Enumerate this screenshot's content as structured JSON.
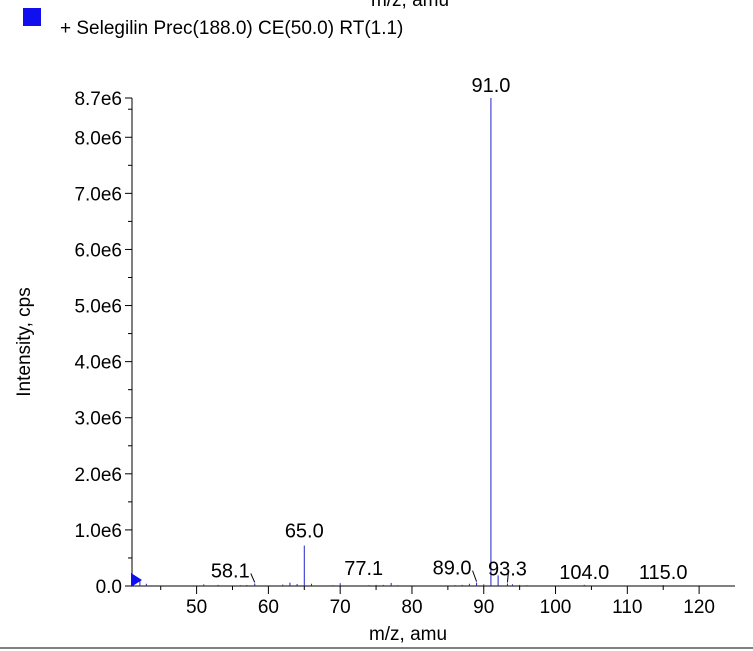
{
  "top_cutoff_text": "m/z, amu",
  "colors": {
    "series": "#2222cc",
    "legend_swatch": "#1010ee",
    "axis": "#000000",
    "marker": "#1010ee"
  },
  "chart_data": {
    "type": "bar",
    "title": "",
    "xlabel": "m/z, amu",
    "ylabel": "Intensity, cps",
    "xlim": [
      41,
      125
    ],
    "ylim": [
      0,
      8700000.0
    ],
    "x_ticks": [
      50,
      60,
      70,
      80,
      90,
      100,
      110,
      120
    ],
    "x_tick_labels": [
      "50",
      "60",
      "70",
      "80",
      "90",
      "100",
      "110",
      "120"
    ],
    "y_ticks": [
      0,
      1000000,
      2000000,
      3000000,
      4000000,
      5000000,
      6000000,
      7000000,
      8000000,
      8700000
    ],
    "y_tick_labels": [
      "0.0",
      "1.0e6",
      "2.0e6",
      "3.0e6",
      "4.0e6",
      "5.0e6",
      "6.0e6",
      "7.0e6",
      "8.0e6",
      "8.7e6"
    ],
    "legend_placement": "top-left",
    "series": [
      {
        "name": "+ Selegilin Prec(188.0) CE(50.0) RT(1.1)",
        "x": [
          41.2,
          42.1,
          43.0,
          51.0,
          53.0,
          56.1,
          57.0,
          58.1,
          62.0,
          63.0,
          64.0,
          65.0,
          66.0,
          69.0,
          70.0,
          74.0,
          75.0,
          76.0,
          77.1,
          78.0,
          79.0,
          84.0,
          86.0,
          87.0,
          88.0,
          89.0,
          90.0,
          91.0,
          92.0,
          93.3,
          94.0,
          95.0,
          96.0,
          104.0,
          115.0
        ],
        "values": [
          60000,
          90000,
          40000,
          30000,
          20000,
          15000,
          18000,
          45000,
          25000,
          60000,
          35000,
          720000,
          40000,
          15000,
          50000,
          15000,
          20000,
          20000,
          55000,
          15000,
          12000,
          12000,
          15000,
          20000,
          40000,
          60000,
          30000,
          8700000,
          190000,
          45000,
          30000,
          20000,
          15000,
          22000,
          18000
        ]
      }
    ],
    "peak_labels": [
      {
        "text": "91.0",
        "x": 91.0
      },
      {
        "text": "65.0",
        "x": 65.0
      },
      {
        "text": "58.1",
        "x": 58.1
      },
      {
        "text": "77.1",
        "x": 77.1
      },
      {
        "text": "89.0",
        "x": 89.0
      },
      {
        "text": "93.3",
        "x": 93.3
      },
      {
        "text": "104.0",
        "x": 104.0
      },
      {
        "text": "115.0",
        "x": 115.0
      }
    ]
  }
}
